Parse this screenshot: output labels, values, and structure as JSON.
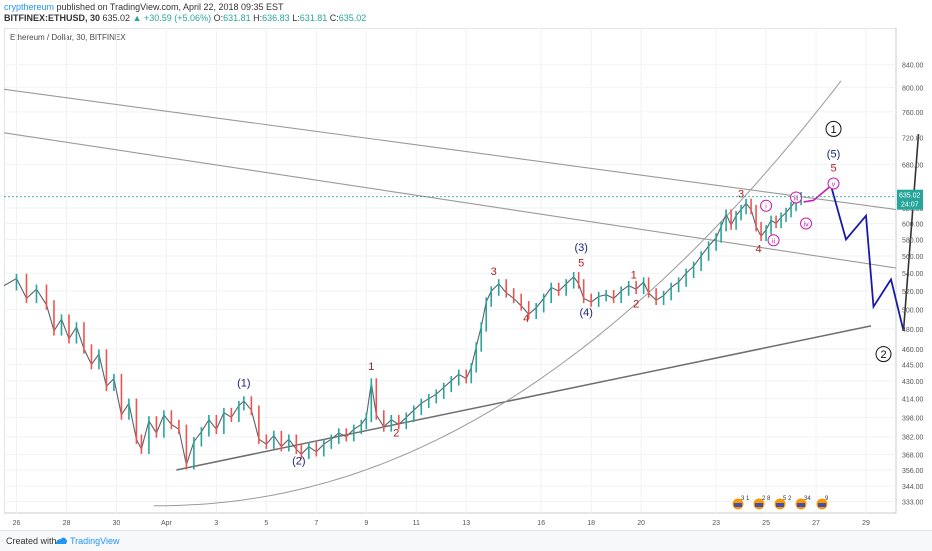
{
  "header": {
    "author": "crypthereum",
    "published_text": "published on TradingView.com, April 22, 2018 09:35 EST",
    "symbol": "BITFINEX:ETHUSD, 30",
    "last": "635.02",
    "change": "+30.59 (+5.06%)",
    "open_label": "O:",
    "open": "631.81",
    "high_label": "H:",
    "high": "636.83",
    "low_label": "L:",
    "low": "631.81",
    "close_label": "C:",
    "close": "635.02"
  },
  "chart_data": {
    "type": "line",
    "title": "Ethereum / Dollar, 30, BITFINEX",
    "y_axis": {
      "scale": "log",
      "ylim": [
        325,
        850
      ],
      "ticks": [
        "840.00",
        "800.00",
        "760.00",
        "720.00",
        "680.00",
        "640.00",
        "620.00",
        "600.00",
        "580.00",
        "560.00",
        "540.00",
        "520.00",
        "500.00",
        "480.00",
        "460.00",
        "445.00",
        "430.00",
        "414.00",
        "398.00",
        "382.00",
        "368.00",
        "356.00",
        "344.00",
        "333.00"
      ]
    },
    "x_axis": {
      "ticks": [
        {
          "label": "26",
          "day": 26
        },
        {
          "label": "28",
          "day": 28
        },
        {
          "label": "30",
          "day": 30
        },
        {
          "label": "Apr",
          "day": 32
        },
        {
          "label": "3",
          "day": 34
        },
        {
          "label": "5",
          "day": 36
        },
        {
          "label": "7",
          "day": 38
        },
        {
          "label": "9",
          "day": 40
        },
        {
          "label": "11",
          "day": 42
        },
        {
          "label": "13",
          "day": 44
        },
        {
          "label": "16",
          "day": 47
        },
        {
          "label": "18",
          "day": 49
        },
        {
          "label": "20",
          "day": 51
        },
        {
          "label": "23",
          "day": 54
        },
        {
          "label": "25",
          "day": 56
        },
        {
          "label": "27",
          "day": 58
        },
        {
          "label": "29",
          "day": 60
        }
      ],
      "xlim": [
        25.5,
        61.2
      ]
    },
    "price_badge": {
      "price": 635.02,
      "label": "635.02",
      "countdown": "24:07",
      "color": "#26a69a"
    },
    "series": [
      {
        "points": [
          [
            25.5,
            526
          ],
          [
            26.0,
            534
          ],
          [
            26.4,
            512
          ],
          [
            26.8,
            522
          ],
          [
            27.2,
            505
          ],
          [
            27.5,
            478
          ],
          [
            27.8,
            490
          ],
          [
            28.1,
            470
          ],
          [
            28.4,
            482
          ],
          [
            28.7,
            460
          ],
          [
            29.0,
            445
          ],
          [
            29.3,
            455
          ],
          [
            29.6,
            425
          ],
          [
            29.9,
            432
          ],
          [
            30.2,
            400
          ],
          [
            30.5,
            410
          ],
          [
            30.8,
            380
          ],
          [
            31.0,
            372
          ],
          [
            31.3,
            395
          ],
          [
            31.6,
            385
          ],
          [
            31.9,
            400
          ],
          [
            32.2,
            392
          ],
          [
            32.5,
            388
          ],
          [
            32.8,
            360
          ],
          [
            33.1,
            378
          ],
          [
            33.4,
            386
          ],
          [
            33.7,
            396
          ],
          [
            34.0,
            388
          ],
          [
            34.3,
            402
          ],
          [
            34.6,
            398
          ],
          [
            34.9,
            408
          ],
          [
            35.1,
            412
          ],
          [
            35.4,
            404
          ],
          [
            35.7,
            380
          ],
          [
            36.0,
            376
          ],
          [
            36.3,
            383
          ],
          [
            36.6,
            374
          ],
          [
            36.9,
            380
          ],
          [
            37.2,
            372
          ],
          [
            37.4,
            368
          ],
          [
            37.7,
            374
          ],
          [
            38.0,
            370
          ],
          [
            38.3,
            376
          ],
          [
            38.6,
            380
          ],
          [
            38.9,
            385
          ],
          [
            39.2,
            382
          ],
          [
            39.5,
            388
          ],
          [
            39.8,
            392
          ],
          [
            40.0,
            398
          ],
          [
            40.2,
            428
          ],
          [
            40.4,
            400
          ],
          [
            40.7,
            390
          ],
          [
            41.0,
            396
          ],
          [
            41.3,
            392
          ],
          [
            41.6,
            398
          ],
          [
            41.9,
            404
          ],
          [
            42.2,
            410
          ],
          [
            42.5,
            414
          ],
          [
            42.8,
            418
          ],
          [
            43.1,
            424
          ],
          [
            43.4,
            430
          ],
          [
            43.7,
            436
          ],
          [
            44.0,
            432
          ],
          [
            44.2,
            442
          ],
          [
            44.4,
            462
          ],
          [
            44.6,
            482
          ],
          [
            44.8,
            508
          ],
          [
            45.0,
            520
          ],
          [
            45.3,
            528
          ],
          [
            45.6,
            518
          ],
          [
            45.9,
            512
          ],
          [
            46.2,
            504
          ],
          [
            46.5,
            495
          ],
          [
            46.8,
            502
          ],
          [
            47.1,
            512
          ],
          [
            47.4,
            524
          ],
          [
            47.7,
            520
          ],
          [
            48.0,
            528
          ],
          [
            48.3,
            536
          ],
          [
            48.5,
            528
          ],
          [
            48.7,
            512
          ],
          [
            49.0,
            508
          ],
          [
            49.3,
            514
          ],
          [
            49.6,
            516
          ],
          [
            49.9,
            512
          ],
          [
            50.2,
            520
          ],
          [
            50.5,
            526
          ],
          [
            50.8,
            522
          ],
          [
            51.1,
            530
          ],
          [
            51.3,
            518
          ],
          [
            51.6,
            510
          ],
          [
            51.9,
            515
          ],
          [
            52.2,
            524
          ],
          [
            52.5,
            530
          ],
          [
            52.8,
            540
          ],
          [
            53.1,
            548
          ],
          [
            53.4,
            560
          ],
          [
            53.7,
            572
          ],
          [
            54.0,
            582
          ],
          [
            54.2,
            596
          ],
          [
            54.4,
            612
          ],
          [
            54.6,
            598
          ],
          [
            54.8,
            610
          ],
          [
            55.0,
            618
          ],
          [
            55.2,
            626
          ],
          [
            55.4,
            618
          ],
          [
            55.6,
            596
          ],
          [
            55.8,
            584
          ],
          [
            56.0,
            592
          ],
          [
            56.2,
            604
          ],
          [
            56.4,
            600
          ],
          [
            56.6,
            608
          ],
          [
            56.8,
            614
          ],
          [
            57.0,
            622
          ],
          [
            57.2,
            630
          ],
          [
            57.4,
            635
          ]
        ],
        "color": "#5d606b"
      }
    ],
    "wave_labels": [
      {
        "text": "(1)",
        "color": "#1a237e",
        "day": 35.1,
        "price": 425
      },
      {
        "text": "(2)",
        "color": "#1a237e",
        "day": 37.3,
        "price": 360
      },
      {
        "text": "1",
        "color": "#b71c1c",
        "day": 40.2,
        "price": 440
      },
      {
        "text": "2",
        "color": "#b71c1c",
        "day": 41.2,
        "price": 382
      },
      {
        "text": "3",
        "color": "#b71c1c",
        "day": 45.1,
        "price": 538
      },
      {
        "text": "4",
        "color": "#b71c1c",
        "day": 46.4,
        "price": 487
      },
      {
        "text": "(3)",
        "color": "#1a237e",
        "day": 48.6,
        "price": 566
      },
      {
        "text": "5",
        "color": "#b71c1c",
        "day": 48.6,
        "price": 548
      },
      {
        "text": "(4)",
        "color": "#1a237e",
        "day": 48.8,
        "price": 493
      },
      {
        "text": "1",
        "color": "#b71c1c",
        "day": 50.7,
        "price": 534
      },
      {
        "text": "2",
        "color": "#b71c1c",
        "day": 50.8,
        "price": 502
      },
      {
        "text": "3",
        "color": "#b71c1c",
        "day": 55.0,
        "price": 634
      },
      {
        "text": "4",
        "color": "#b71c1c",
        "day": 55.7,
        "price": 564
      },
      {
        "text": "(5)",
        "color": "#1a237e",
        "day": 58.7,
        "price": 690
      },
      {
        "text": "5",
        "color": "#b71c1c",
        "day": 58.7,
        "price": 670
      }
    ],
    "circled_labels": [
      {
        "text": "i",
        "color": "#c51cb0",
        "day": 56.0,
        "price": 623
      },
      {
        "text": "ii",
        "color": "#c51cb0",
        "day": 56.3,
        "price": 579
      },
      {
        "text": "iii",
        "color": "#c51cb0",
        "day": 57.2,
        "price": 634
      },
      {
        "text": "iv",
        "color": "#c51cb0",
        "day": 57.6,
        "price": 600
      },
      {
        "text": "v",
        "color": "#c51cb0",
        "day": 58.7,
        "price": 653
      },
      {
        "text": "1",
        "color": "#111111",
        "day": 58.7,
        "price": 733
      },
      {
        "text": "2",
        "color": "#111111",
        "day": 60.7,
        "price": 455
      }
    ],
    "projection_magenta": {
      "color": "#c51cb0",
      "points": [
        [
          57.5,
          628
        ],
        [
          57.9,
          630
        ],
        [
          58.6,
          650
        ]
      ]
    },
    "projection_blue": {
      "color": "#1a1aa8",
      "points": [
        [
          58.6,
          650
        ],
        [
          59.2,
          580
        ],
        [
          60.0,
          610
        ],
        [
          60.3,
          503
        ],
        [
          61.0,
          533
        ],
        [
          61.5,
          478
        ]
      ]
    },
    "projection_black": {
      "color": "#333333",
      "points": [
        [
          61.5,
          478
        ],
        [
          62.1,
          725
        ]
      ]
    },
    "events": [
      "3 1",
      "2 8",
      "5 2",
      "34",
      "9"
    ]
  },
  "footer": {
    "created_with": "Created with",
    "brand": "TradingView"
  }
}
